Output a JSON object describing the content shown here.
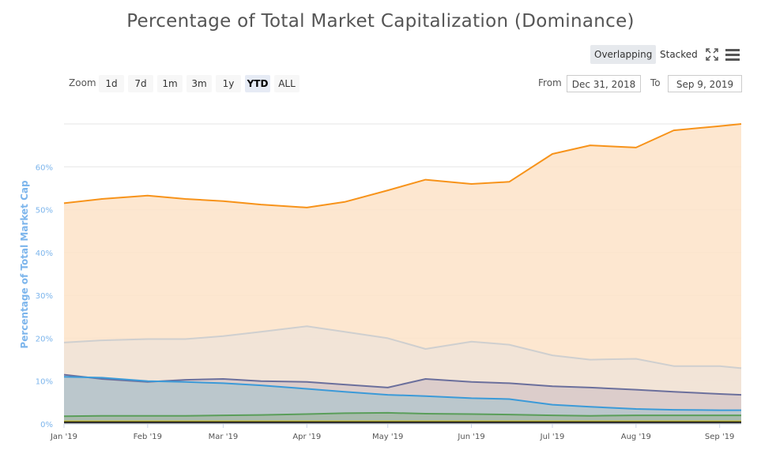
{
  "chart_data": {
    "type": "area",
    "title": "Percentage of Total Market Capitalization (Dominance)",
    "ylabel": "Percentage of Total Market Cap",
    "xlabel": "",
    "ylim": [
      0,
      70
    ],
    "yticks": [
      "0%",
      "10%",
      "20%",
      "30%",
      "40%",
      "50%",
      "60%"
    ],
    "x_tick_labels": [
      "Jan '19",
      "Feb '19",
      "Mar '19",
      "Apr '19",
      "May '19",
      "Jun '19",
      "Jul '19",
      "Aug '19",
      "Sep '19"
    ],
    "x": [
      "2019-01-01",
      "2019-01-15",
      "2019-02-01",
      "2019-02-15",
      "2019-03-01",
      "2019-03-15",
      "2019-04-01",
      "2019-04-15",
      "2019-05-01",
      "2019-05-15",
      "2019-06-01",
      "2019-06-15",
      "2019-07-01",
      "2019-07-15",
      "2019-08-01",
      "2019-08-15",
      "2019-09-01",
      "2019-09-09"
    ],
    "grid": true,
    "series": [
      {
        "color": "#f7931a",
        "fill": "#fde3c8",
        "values": [
          51.5,
          52.5,
          53.3,
          52.5,
          52.0,
          51.2,
          50.5,
          51.8,
          54.5,
          57.0,
          56.0,
          56.5,
          63.0,
          65.0,
          64.5,
          68.5,
          69.5,
          70.0
        ]
      },
      {
        "color": "#cfcfcf",
        "fill": "#f0e3d8",
        "values": [
          19.0,
          19.5,
          19.8,
          19.8,
          20.5,
          21.5,
          22.8,
          21.5,
          20.0,
          17.5,
          19.2,
          18.5,
          16.0,
          15.0,
          15.2,
          13.5,
          13.5,
          13.0
        ]
      },
      {
        "color": "#6b6f9c",
        "fill": "#d8c9c9",
        "values": [
          11.5,
          10.5,
          9.8,
          10.3,
          10.5,
          10.0,
          9.8,
          9.2,
          8.5,
          10.5,
          9.8,
          9.5,
          8.8,
          8.5,
          8.0,
          7.5,
          7.0,
          6.8
        ]
      },
      {
        "color": "#3b9ad8",
        "fill": "#b5c6cc",
        "values": [
          11.0,
          10.8,
          10.0,
          9.8,
          9.5,
          9.0,
          8.2,
          7.5,
          6.8,
          6.5,
          6.0,
          5.8,
          4.5,
          4.0,
          3.5,
          3.3,
          3.2,
          3.2
        ]
      },
      {
        "color": "#5a9e5a",
        "fill": "#a6b8a8",
        "values": [
          1.8,
          1.9,
          1.9,
          1.9,
          2.0,
          2.1,
          2.3,
          2.5,
          2.6,
          2.4,
          2.3,
          2.2,
          2.0,
          1.9,
          2.0,
          2.0,
          2.0,
          2.0
        ]
      },
      {
        "color": "#d4c81e",
        "fill": "#cfc98a",
        "values": [
          0.6,
          0.6,
          0.6,
          0.6,
          0.6,
          0.6,
          0.6,
          0.6,
          0.6,
          0.6,
          0.6,
          0.6,
          0.6,
          0.6,
          0.6,
          0.6,
          0.6,
          0.6
        ]
      },
      {
        "color": "#222222",
        "fill": "#7a7a7a",
        "values": [
          0.4,
          0.4,
          0.4,
          0.4,
          0.4,
          0.4,
          0.4,
          0.4,
          0.4,
          0.4,
          0.4,
          0.4,
          0.4,
          0.4,
          0.4,
          0.4,
          0.4,
          0.4
        ]
      }
    ]
  },
  "controls": {
    "overlapping_label": "Overlapping",
    "stacked_label": "Stacked",
    "zoom_label": "Zoom",
    "zoom_buttons": [
      "1d",
      "7d",
      "1m",
      "3m",
      "1y",
      "YTD",
      "ALL"
    ],
    "active_zoom": "YTD",
    "from_label": "From",
    "from_value": "Dec 31, 2018",
    "to_label": "To",
    "to_value": "Sep 9, 2019"
  },
  "icons": {
    "fullscreen": "fullscreen-icon",
    "menu": "hamburger-menu-icon"
  }
}
